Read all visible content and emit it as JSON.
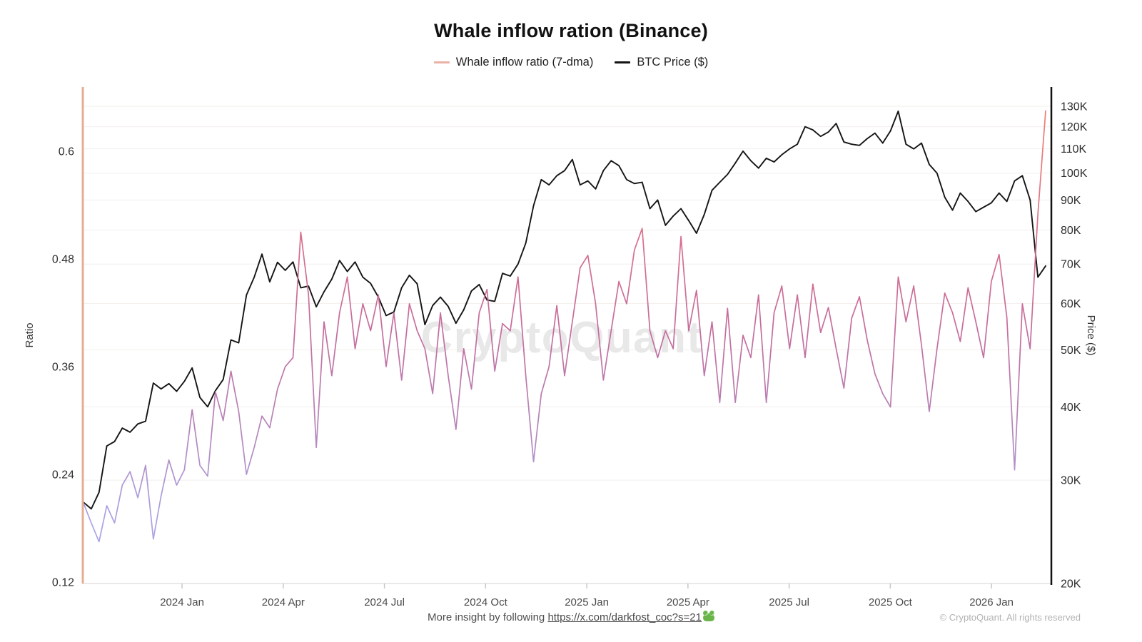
{
  "title": "Whale inflow ration (Binance)",
  "legend": {
    "items": [
      {
        "label": "Whale inflow ratio (7-dma)",
        "color": "#eab1a5"
      },
      {
        "label": "BTC Price ($)",
        "color": "#141414"
      }
    ]
  },
  "watermark": "CryptoQuant",
  "footer": {
    "text_prefix": "More insight by following ",
    "link_text": "https://x.com/darkfost_coc?s=21",
    "frog_emoji": "🐸",
    "copyright": "© CryptoQuant. All rights reserved"
  },
  "colors": {
    "left_axis_line": "#e5ad92",
    "right_axis_line": "#111111",
    "grid_line": "#f2efed",
    "bottom_axis_line": "#dddbda",
    "tick_label": "#2d2d2d",
    "x_tick_label": "#4a4a4a",
    "watermark": "#e9e8e8"
  },
  "chart_data": {
    "type": "line",
    "title": "Whale inflow ration (Binance)",
    "x_axis": {
      "tick_labels": [
        "2024 Jan",
        "2024 Apr",
        "2024 Jul",
        "2024 Oct",
        "2025 Jan",
        "2025 Apr",
        "2025 Jul",
        "2025 Oct",
        "2026 Jan"
      ],
      "tick_positions_weeks": [
        12.7,
        25.74,
        38.78,
        51.82,
        64.86,
        77.9,
        90.94,
        103.98,
        117.02
      ],
      "x_unit": "weeks",
      "x_range_approx": [
        "2023 Oct",
        "2026 Feb"
      ]
    },
    "left_axis": {
      "label": "Ratio",
      "ticks": [
        0.12,
        0.24,
        0.36,
        0.48,
        0.6
      ],
      "range": [
        0.12,
        0.675
      ],
      "scale": "linear"
    },
    "right_axis": {
      "label": "Price ($)",
      "scale": "log",
      "tick_labels": [
        "20K",
        "30K",
        "40K",
        "50K",
        "60K",
        "70K",
        "80K",
        "90K",
        "100K",
        "110K",
        "120K",
        "130K"
      ],
      "tick_values": [
        20,
        30,
        40,
        50,
        60,
        70,
        80,
        90,
        100,
        110,
        120,
        130
      ],
      "unit": "thousand USD"
    },
    "grid": "horizontal-on-price-ticks",
    "legend_position": "top-center",
    "series": [
      {
        "name": "Whale inflow ratio (7-dma)",
        "axis": "left",
        "style": "value-gradient",
        "gradient_stops": [
          {
            "offset": 0.0,
            "color": "#ee7f72"
          },
          {
            "offset": 0.18,
            "color": "#e57a7d"
          },
          {
            "offset": 0.3,
            "color": "#d8708d"
          },
          {
            "offset": 0.5,
            "color": "#c46d9e"
          },
          {
            "offset": 0.7,
            "color": "#b487bd"
          },
          {
            "offset": 0.85,
            "color": "#aba0e0"
          },
          {
            "offset": 1.0,
            "color": "#a8a8ec"
          }
        ],
        "values": [
          0.208,
          0.186,
          0.165,
          0.205,
          0.186,
          0.228,
          0.243,
          0.214,
          0.25,
          0.168,
          0.216,
          0.256,
          0.228,
          0.245,
          0.312,
          0.25,
          0.238,
          0.332,
          0.3,
          0.355,
          0.31,
          0.24,
          0.27,
          0.305,
          0.292,
          0.335,
          0.36,
          0.37,
          0.51,
          0.44,
          0.27,
          0.41,
          0.35,
          0.42,
          0.46,
          0.38,
          0.43,
          0.4,
          0.44,
          0.36,
          0.42,
          0.345,
          0.43,
          0.4,
          0.38,
          0.33,
          0.42,
          0.35,
          0.29,
          0.38,
          0.335,
          0.42,
          0.446,
          0.355,
          0.408,
          0.4,
          0.46,
          0.35,
          0.254,
          0.33,
          0.36,
          0.428,
          0.35,
          0.41,
          0.47,
          0.484,
          0.43,
          0.345,
          0.4,
          0.455,
          0.43,
          0.49,
          0.514,
          0.4,
          0.37,
          0.4,
          0.38,
          0.505,
          0.4,
          0.445,
          0.35,
          0.41,
          0.32,
          0.425,
          0.32,
          0.395,
          0.37,
          0.44,
          0.32,
          0.42,
          0.45,
          0.38,
          0.44,
          0.37,
          0.452,
          0.398,
          0.426,
          0.38,
          0.336,
          0.414,
          0.438,
          0.39,
          0.352,
          0.33,
          0.315,
          0.46,
          0.41,
          0.45,
          0.384,
          0.31,
          0.38,
          0.442,
          0.42,
          0.388,
          0.448,
          0.41,
          0.37,
          0.455,
          0.485,
          0.415,
          0.245,
          0.43,
          0.38,
          0.53,
          0.645
        ]
      },
      {
        "name": "BTC Price ($)",
        "axis": "right",
        "color": "#141414",
        "unit": "thousand USD",
        "values": [
          27.5,
          26.8,
          28.6,
          34.3,
          34.9,
          36.8,
          36.2,
          37.4,
          37.8,
          43.9,
          42.9,
          43.8,
          42.5,
          44.2,
          46.6,
          41.5,
          40.0,
          42.6,
          44.5,
          52.0,
          51.4,
          62.0,
          66.5,
          72.8,
          65.3,
          70.5,
          68.3,
          70.6,
          63.8,
          64.2,
          59.2,
          62.8,
          66.0,
          71.0,
          68.0,
          70.6,
          66.5,
          64.9,
          61.5,
          57.2,
          58.0,
          63.8,
          67.0,
          64.8,
          55.2,
          59.5,
          61.5,
          59.3,
          55.5,
          58.5,
          63.0,
          64.6,
          60.8,
          60.5,
          67.5,
          66.8,
          70.0,
          76.0,
          88.0,
          97.5,
          95.5,
          99.0,
          101.0,
          105.5,
          95.5,
          97.0,
          94.0,
          101.0,
          105.0,
          103.0,
          97.5,
          96.0,
          96.5,
          87.0,
          90.0,
          81.5,
          84.5,
          87.0,
          83.0,
          79.0,
          85.0,
          93.5,
          96.5,
          99.5,
          104.0,
          109.0,
          105.0,
          102.0,
          106.0,
          104.5,
          107.5,
          110.0,
          112.0,
          120.0,
          118.5,
          115.5,
          117.5,
          121.5,
          113.0,
          112.0,
          111.5,
          114.5,
          117.0,
          112.5,
          118.0,
          127.5,
          112.0,
          110.0,
          112.5,
          103.5,
          100.0,
          91.0,
          86.5,
          92.5,
          89.5,
          86.0,
          87.5,
          89.0,
          92.5,
          89.5,
          97.0,
          99.0,
          90.0,
          66.5,
          69.5
        ]
      }
    ]
  }
}
